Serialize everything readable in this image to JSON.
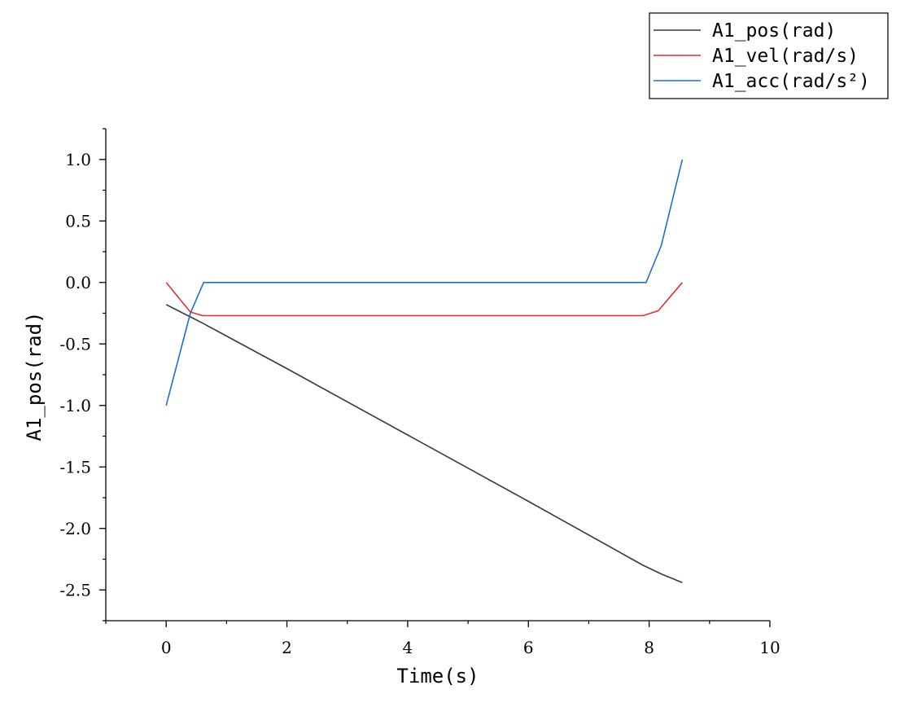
{
  "chart_data": {
    "type": "line",
    "xlabel": "Time(s)",
    "ylabel": "A1_pos(rad)",
    "xlim": [
      -1,
      10
    ],
    "ylim": [
      -2.75,
      1.25
    ],
    "x_ticks": [
      0,
      2,
      4,
      6,
      8,
      10
    ],
    "x_tick_labels": [
      "0",
      "2",
      "4",
      "6",
      "8",
      "10"
    ],
    "y_ticks": [
      1.0,
      0.5,
      0.0,
      -0.5,
      -1.0,
      -1.5,
      -2.0,
      -2.5
    ],
    "y_tick_labels": [
      "1.0",
      "0.5",
      "0.0",
      "-0.5",
      "-1.0",
      "-1.5",
      "-2.0",
      "-2.5"
    ],
    "grid": false,
    "legend_position": "top-right",
    "series": [
      {
        "name": "A1_pos(rad)",
        "color": "#3a3a3a",
        "x": [
          0,
          0.2,
          0.4,
          0.6,
          2,
          4,
          6,
          7.9,
          8.2,
          8.55
        ],
        "y": [
          -0.18,
          -0.23,
          -0.28,
          -0.33,
          -0.7,
          -1.24,
          -1.78,
          -2.3,
          -2.37,
          -2.44
        ]
      },
      {
        "name": "A1_vel(rad/s)",
        "color": "#e03030",
        "x": [
          0,
          0.2,
          0.4,
          0.6,
          2,
          4,
          6,
          7.9,
          8.15,
          8.55
        ],
        "y": [
          0.0,
          -0.12,
          -0.24,
          -0.27,
          -0.27,
          -0.27,
          -0.27,
          -0.27,
          -0.23,
          0.0
        ]
      },
      {
        "name": "A1_acc(rad/s²)",
        "color": "#1f6fc8",
        "x": [
          0,
          0.4,
          0.62,
          2,
          4,
          6,
          7.95,
          8.2,
          8.55
        ],
        "y": [
          -1.0,
          -0.25,
          0.0,
          0.0,
          0.0,
          0.0,
          0.0,
          0.3,
          1.0
        ]
      }
    ]
  }
}
